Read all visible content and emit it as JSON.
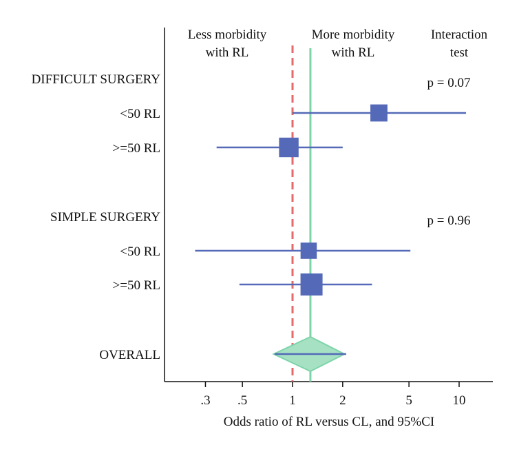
{
  "chart_data": {
    "type": "forest",
    "xlabel": "Odds ratio of RL versus CL, and 95%CI",
    "x_scale": "log",
    "xlim": [
      0.2,
      15
    ],
    "x_ticks": [
      {
        "value": 0.3,
        "label": ".3"
      },
      {
        "value": 0.5,
        "label": ".5"
      },
      {
        "value": 1,
        "label": "1"
      },
      {
        "value": 2,
        "label": "2"
      },
      {
        "value": 5,
        "label": "5"
      },
      {
        "value": 10,
        "label": "10"
      }
    ],
    "null_line": 1,
    "overall_line": 1.28,
    "header_left": [
      "Less morbidity",
      "with RL"
    ],
    "header_mid": [
      "More morbidity",
      "with RL"
    ],
    "header_right": [
      "Interaction",
      "test"
    ],
    "groups": [
      {
        "label": "DIFFICULT SURGERY",
        "p_value": "p = 0.07",
        "rows": [
          {
            "label": "<50 RL",
            "or": 3.3,
            "lo": 1.0,
            "hi": 11.0,
            "weight": 0.45
          },
          {
            "label": ">=50 RL",
            "or": 0.95,
            "lo": 0.35,
            "hi": 2.0,
            "weight": 0.6
          }
        ]
      },
      {
        "label": "SIMPLE SURGERY",
        "p_value": "p = 0.96",
        "rows": [
          {
            "label": "<50 RL",
            "or": 1.25,
            "lo": 0.26,
            "hi": 5.1,
            "weight": 0.4
          },
          {
            "label": ">=50 RL",
            "or": 1.3,
            "lo": 0.48,
            "hi": 3.0,
            "weight": 0.75
          }
        ]
      }
    ],
    "overall": {
      "label": "OVERALL",
      "or": 1.28,
      "lo": 0.78,
      "hi": 2.1
    },
    "colors": {
      "square": "#5469b8",
      "ci_line": "#5469b8",
      "null_line": "#e36a6a",
      "overall_line": "#7dd4a8",
      "diamond_fill": "#a6e1c4",
      "diamond_stroke": "#7dd4a8",
      "axis": "#111111"
    }
  }
}
